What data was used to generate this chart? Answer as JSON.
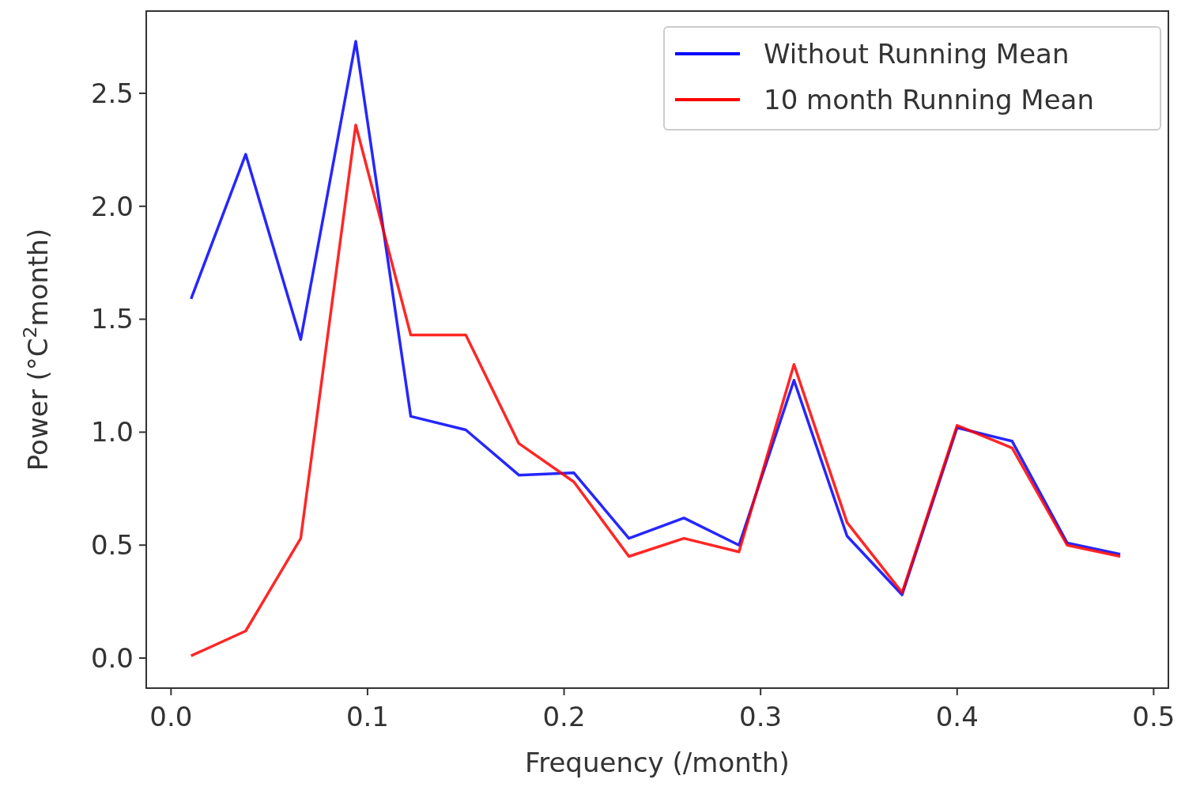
{
  "chart_data": {
    "type": "line",
    "xlabel": "Frequency (/month)",
    "ylabel": "Power (°C$^{2}$month)",
    "x": [
      0.0102,
      0.038,
      0.066,
      0.094,
      0.122,
      0.15,
      0.177,
      0.205,
      0.233,
      0.261,
      0.289,
      0.317,
      0.344,
      0.372,
      0.4,
      0.428,
      0.456,
      0.483
    ],
    "series": [
      {
        "name": "Without Running Mean",
        "color": "#0000ff",
        "values": [
          1.59,
          2.23,
          1.41,
          2.73,
          1.07,
          1.01,
          0.81,
          0.82,
          0.53,
          0.62,
          0.5,
          1.23,
          0.54,
          0.28,
          1.02,
          0.96,
          0.51,
          0.46
        ]
      },
      {
        "name": "10 month Running Mean",
        "color": "#ff0000",
        "values": [
          0.01,
          0.12,
          0.53,
          2.36,
          1.43,
          1.43,
          0.95,
          0.78,
          0.45,
          0.53,
          0.47,
          1.3,
          0.6,
          0.29,
          1.03,
          0.93,
          0.5,
          0.45
        ]
      }
    ],
    "xlim": [
      -0.0126,
      0.5075
    ],
    "ylim": [
      -0.133,
      2.864
    ],
    "xticks": [
      {
        "value": 0,
        "label": "0.0"
      },
      0.1,
      0.2,
      0.3,
      0.4,
      0.5
    ],
    "yticks": [
      {
        "value": 0,
        "label": "0.0"
      },
      0.5,
      {
        "value": 1,
        "label": "1.0"
      },
      1.5,
      {
        "value": 2,
        "label": "2.0"
      },
      2.5
    ],
    "legend": "top right",
    "grid": false,
    "marker": "none",
    "line_style": "solid"
  }
}
